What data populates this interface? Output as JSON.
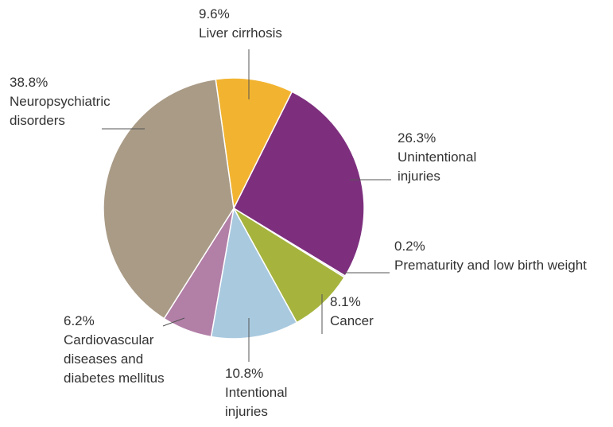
{
  "chart_data": {
    "type": "pie",
    "categories": [
      "Liver cirrhosis",
      "Unintentional injuries",
      "Prematurity and low birth weight",
      "Cancer",
      "Intentional injuries",
      "Cardiovascular diseases and diabetes mellitus",
      "Neuropsychiatric disorders"
    ],
    "values": [
      9.6,
      26.3,
      0.2,
      8.1,
      10.8,
      6.2,
      38.8
    ],
    "value_labels": [
      "9.6%",
      "26.3%",
      "0.2%",
      "8.1%",
      "10.8%",
      "6.2%",
      "38.8%"
    ],
    "colors": [
      "#f2b430",
      "#7d2f7e",
      "#c9c9c9",
      "#a6b43e",
      "#a9c9df",
      "#b27fa7",
      "#a99b86"
    ]
  }
}
